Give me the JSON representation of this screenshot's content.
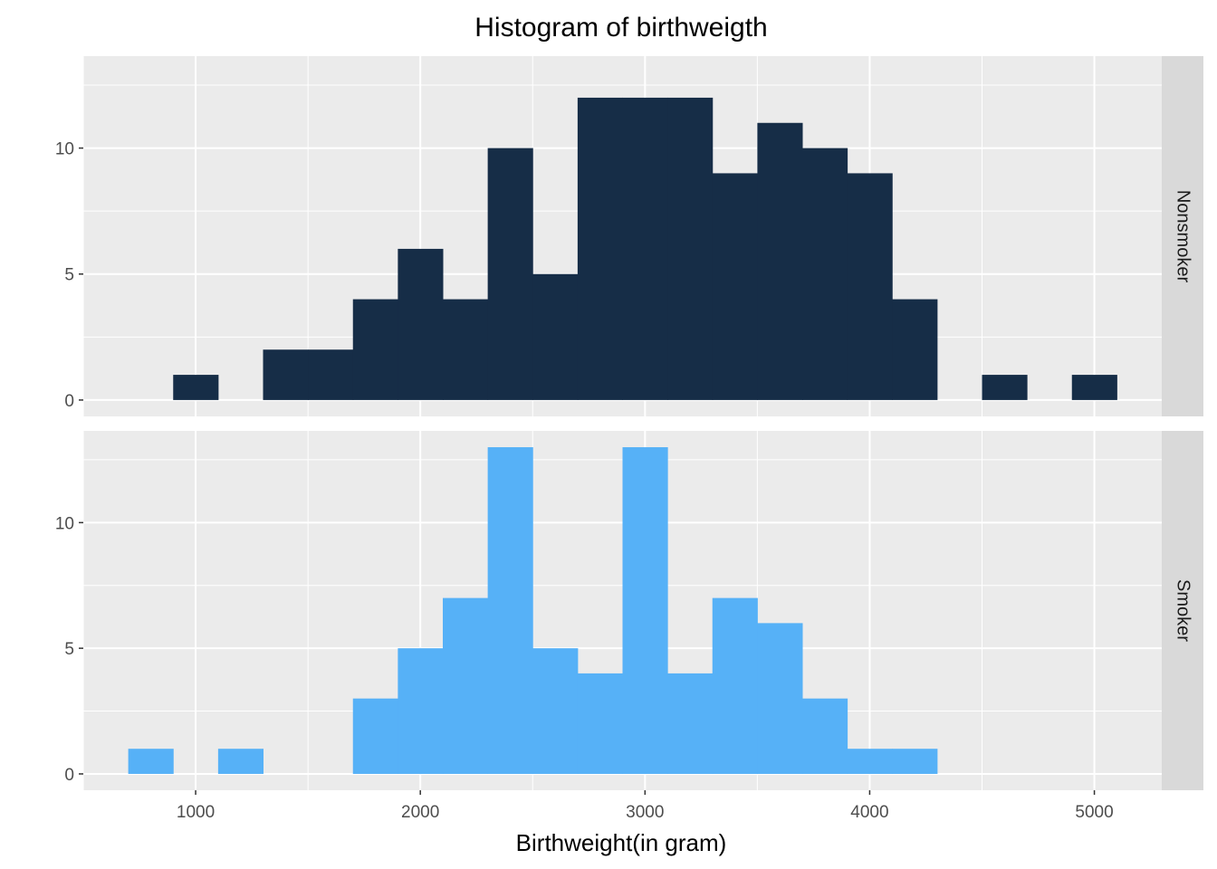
{
  "chart_data": {
    "type": "bar",
    "subtype": "faceted-histogram",
    "title": "Histogram of birthweigth",
    "xlabel": "Birthweight(in gram)",
    "ylabel": "",
    "xlim": [
      500,
      5300
    ],
    "ylim": [
      -0.65,
      13.65
    ],
    "x_ticks": [
      1000,
      2000,
      3000,
      4000,
      5000
    ],
    "y_ticks": [
      0,
      5,
      10
    ],
    "bin_width": 200,
    "grid": true,
    "legend": "none",
    "panel_background": "#ebebeb",
    "strip_background": "#d9d9d9",
    "facets": [
      {
        "name": "Nonsmoker",
        "color": "#162d47",
        "bins": [
          {
            "start": 900,
            "end": 1100,
            "count": 1
          },
          {
            "start": 1300,
            "end": 1500,
            "count": 2
          },
          {
            "start": 1500,
            "end": 1700,
            "count": 2
          },
          {
            "start": 1700,
            "end": 1900,
            "count": 4
          },
          {
            "start": 1900,
            "end": 2100,
            "count": 6
          },
          {
            "start": 2100,
            "end": 2300,
            "count": 4
          },
          {
            "start": 2300,
            "end": 2500,
            "count": 10
          },
          {
            "start": 2500,
            "end": 2700,
            "count": 5
          },
          {
            "start": 2700,
            "end": 2900,
            "count": 12
          },
          {
            "start": 2900,
            "end": 3100,
            "count": 12
          },
          {
            "start": 3100,
            "end": 3300,
            "count": 12
          },
          {
            "start": 3300,
            "end": 3500,
            "count": 9
          },
          {
            "start": 3500,
            "end": 3700,
            "count": 11
          },
          {
            "start": 3700,
            "end": 3900,
            "count": 10
          },
          {
            "start": 3900,
            "end": 4100,
            "count": 9
          },
          {
            "start": 4100,
            "end": 4300,
            "count": 4
          },
          {
            "start": 4500,
            "end": 4700,
            "count": 1
          },
          {
            "start": 4900,
            "end": 5100,
            "count": 1
          }
        ]
      },
      {
        "name": "Smoker",
        "color": "#56b1f7",
        "bins": [
          {
            "start": 700,
            "end": 900,
            "count": 1
          },
          {
            "start": 1100,
            "end": 1300,
            "count": 1
          },
          {
            "start": 1700,
            "end": 1900,
            "count": 3
          },
          {
            "start": 1900,
            "end": 2100,
            "count": 5
          },
          {
            "start": 2100,
            "end": 2300,
            "count": 7
          },
          {
            "start": 2300,
            "end": 2500,
            "count": 13
          },
          {
            "start": 2500,
            "end": 2700,
            "count": 5
          },
          {
            "start": 2700,
            "end": 2900,
            "count": 4
          },
          {
            "start": 2900,
            "end": 3100,
            "count": 13
          },
          {
            "start": 3100,
            "end": 3300,
            "count": 4
          },
          {
            "start": 3300,
            "end": 3500,
            "count": 7
          },
          {
            "start": 3500,
            "end": 3700,
            "count": 6
          },
          {
            "start": 3700,
            "end": 3900,
            "count": 3
          },
          {
            "start": 3900,
            "end": 4100,
            "count": 1
          },
          {
            "start": 4100,
            "end": 4300,
            "count": 1
          }
        ]
      }
    ]
  }
}
